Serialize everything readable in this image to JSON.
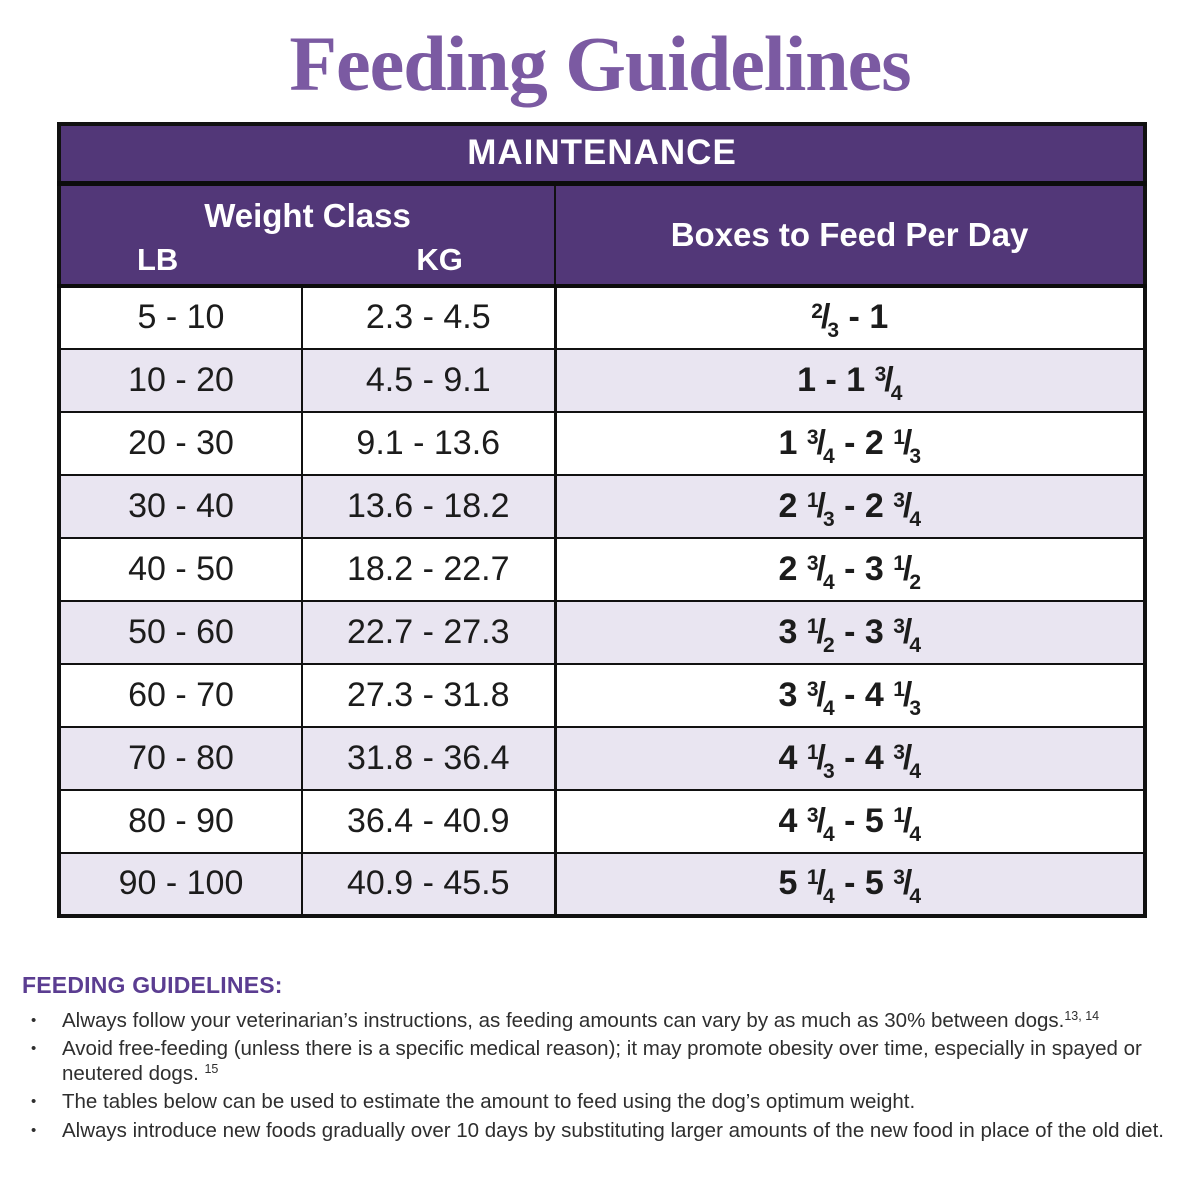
{
  "page": {
    "title": "Feeding Guidelines"
  },
  "table": {
    "header": "MAINTENANCE",
    "weight_class_label": "Weight Class",
    "lb_label": "LB",
    "kg_label": "KG",
    "boxes_label": "Boxes to Feed Per Day",
    "rows": [
      {
        "lb": "5 - 10",
        "kg": "2.3 - 4.5",
        "boxes": "{2/3} - 1"
      },
      {
        "lb": "10 - 20",
        "kg": "4.5 - 9.1",
        "boxes": "1 - 1 {3/4}"
      },
      {
        "lb": "20 - 30",
        "kg": "9.1 - 13.6",
        "boxes": "1 {3/4} - 2 {1/3}"
      },
      {
        "lb": "30 - 40",
        "kg": "13.6 - 18.2",
        "boxes": "2 {1/3} - 2 {3/4}"
      },
      {
        "lb": "40 - 50",
        "kg": "18.2 - 22.7",
        "boxes": "2 {3/4} - 3 {1/2}"
      },
      {
        "lb": "50 - 60",
        "kg": "22.7 - 27.3",
        "boxes": "3 {1/2} - 3 {3/4}"
      },
      {
        "lb": "60 - 70",
        "kg": "27.3 - 31.8",
        "boxes": "3 {3/4} - 4 {1/3}"
      },
      {
        "lb": "70 - 80",
        "kg": "31.8 - 36.4",
        "boxes": "4 {1/3} - 4 {3/4}"
      },
      {
        "lb": "80 - 90",
        "kg": "36.4 - 40.9",
        "boxes": "4 {3/4} - 5 {1/4}"
      },
      {
        "lb": "90 - 100",
        "kg": "40.9 - 45.5",
        "boxes": "5 {1/4} - 5 {3/4}"
      }
    ]
  },
  "guidelines": {
    "heading": "FEEDING GUIDELINES:",
    "bullets": [
      {
        "text": "Always follow your veterinarian’s instructions, as feeding amounts can vary by as much as 30% between dogs.",
        "superscript": "13, 14"
      },
      {
        "text": "Avoid free-feeding (unless there is a specific medical reason); it may promote obesity over time, especially in spayed or neutered dogs. ",
        "superscript": "15"
      },
      {
        "text": "The tables below can be used to estimate the amount to feed using the dog’s optimum weight.",
        "superscript": ""
      },
      {
        "text": "Always introduce new foods gradually over 10 days by substituting larger amounts of the new food in place of the old diet.",
        "superscript": ""
      }
    ]
  },
  "colors": {
    "header_purple": "#523778",
    "title_purple": "#7b5aa2",
    "section_heading_purple": "#5b3d91",
    "row_stripe_lavender": "#e9e5f1",
    "text_dark": "#222222"
  }
}
